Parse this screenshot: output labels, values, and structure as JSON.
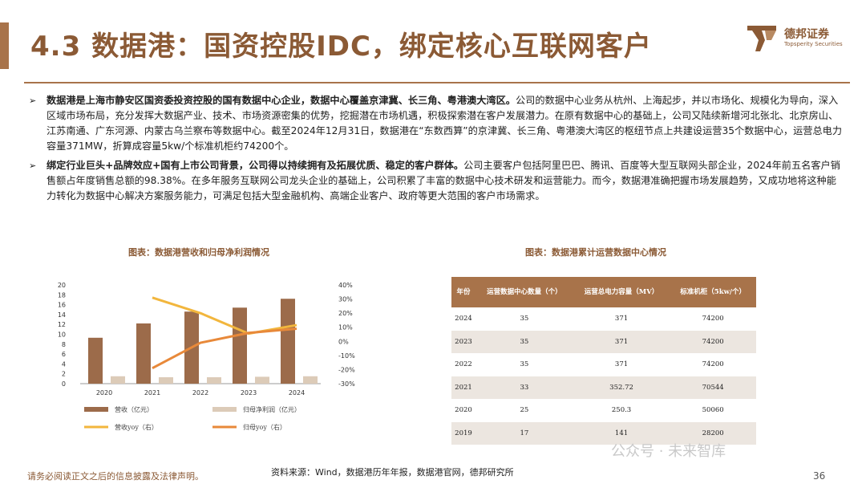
{
  "header": {
    "title": "4.3 数据港：国资控股IDC，绑定核心互联网客户",
    "logo_name": "德邦证券",
    "logo_en": "Topsperity Securities"
  },
  "bullets": [
    {
      "bold": "数据港是上海市静安区国资委投资控股的国有数据中心企业，数据中心覆盖京津冀、长三角、粤港澳大湾区。",
      "text": "公司的数据中心业务从杭州、上海起步，并以市场化、规模化为导向，深入区域市场布局，充分发挥大数据产业、技术、市场资源密集的优势，挖掘潜在市场机遇，积极探索潜在客户发展潜力。在原有数据中心的基础上，公司又陆续新增河北张北、北京房山、江苏南通、广东河源、内蒙古乌兰察布等数据中心。截至2024年12月31日，数据港在“东数西算”的京津冀、长三角、粤港澳大湾区的枢纽节点上共建设运营35个数据中心，运营总电力容量371MW，折算成容量5kw/个标准机柜约74200个。"
    },
    {
      "bold": "绑定行业巨头+品牌效应+国有上市公司背景，公司得以持续拥有及拓展优质、稳定的客户群体。",
      "text": "公司主要客户包括阿里巴巴、腾讯、百度等大型互联网头部企业，2024年前五名客户销售额占年度销售总额的98.38%。在多年服务互联网公司龙头企业的基础上，公司积累了丰富的数据中心技术研发和运营能力。而今，数据港准确把握市场发展趋势，又成功地将这种能力转化为数据中心解决方案服务能力，可满足包括大型金融机构、高端企业客户、政府等更大范围的客户市场需求。"
    }
  ],
  "figure1": {
    "title": "图表：数据港营收和归母净利润情况"
  },
  "figure2": {
    "title": "图表：数据港累计运营数据中心情况"
  },
  "chart_data": [
    {
      "type": "bar",
      "categories": [
        "2020",
        "2021",
        "2022",
        "2023",
        "2024"
      ],
      "series": [
        {
          "name": "营收（亿元）",
          "kind": "bar",
          "axis": "left",
          "color": "#9c6b4a",
          "values": [
            9.3,
            12.2,
            14.6,
            15.4,
            17.2
          ]
        },
        {
          "name": "归母净利润（亿元）",
          "kind": "bar",
          "axis": "left",
          "color": "#dccbb8",
          "values": [
            1.5,
            1.3,
            1.3,
            1.4,
            1.5
          ]
        },
        {
          "name": "营收yoy（右）",
          "kind": "line",
          "axis": "right",
          "color": "#f2b63d",
          "values": [
            null,
            31,
            20,
            5.5,
            11.5
          ]
        },
        {
          "name": "归母yoy（右）",
          "kind": "line",
          "axis": "right",
          "color": "#e8893a",
          "values": [
            null,
            -19,
            -1,
            6,
            9
          ]
        }
      ],
      "ylim": [
        0,
        20
      ],
      "yticks": [
        "0",
        "2",
        "4",
        "6",
        "8",
        "10",
        "12",
        "14",
        "16",
        "18",
        "20"
      ],
      "y2lim": [
        -30,
        40
      ],
      "y2ticks": [
        "-30%",
        "-20%",
        "-10%",
        "0%",
        "10%",
        "20%",
        "30%",
        "40%"
      ],
      "legend": "bottom"
    },
    {
      "type": "table",
      "headers": [
        "年份",
        "运营数据中心数量（个）",
        "运营总电力容量（MV）",
        "标准机柜（5kw/个）"
      ],
      "rows": [
        [
          "2024",
          "35",
          "371",
          "74200"
        ],
        [
          "2023",
          "35",
          "371",
          "74200"
        ],
        [
          "2022",
          "35",
          "371",
          "74200"
        ],
        [
          "2021",
          "33",
          "352.72",
          "70544"
        ],
        [
          "2020",
          "25",
          "250.3",
          "50060"
        ],
        [
          "2019",
          "17",
          "141",
          "28200"
        ]
      ]
    }
  ],
  "footer": {
    "source": "资料来源：Wind，数据港历年年报，数据港官网，德邦研究所",
    "disclaimer": "请务必阅读正文之后的信息披露及法律声明。",
    "page": "36",
    "watermark": "公众号 · 未来智库"
  },
  "colors": {
    "brand": "#8b5a35",
    "accent": "#a8734a"
  }
}
